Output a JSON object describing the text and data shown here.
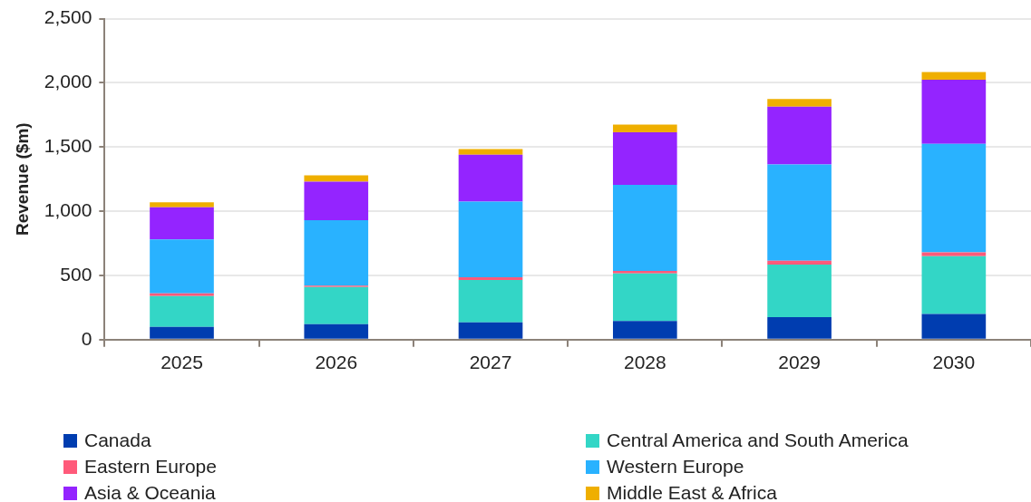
{
  "chart_data": {
    "type": "bar",
    "stacked": true,
    "ylabel": "Revenue ($m)",
    "categories": [
      "2025",
      "2026",
      "2027",
      "2028",
      "2029",
      "2030"
    ],
    "series": [
      {
        "name": "Canada",
        "color": "#003db0",
        "values": [
          100,
          120,
          135,
          145,
          175,
          200
        ]
      },
      {
        "name": "Central America and South America",
        "color": "#33d6c6",
        "values": [
          240,
          290,
          330,
          370,
          410,
          450
        ]
      },
      {
        "name": "Eastern Europe",
        "color": "#ff5a7a",
        "values": [
          20,
          10,
          20,
          20,
          30,
          30
        ]
      },
      {
        "name": "Western Europe",
        "color": "#29b2ff",
        "values": [
          420,
          510,
          590,
          670,
          750,
          845
        ]
      },
      {
        "name": "Asia & Oceania",
        "color": "#9424ff",
        "values": [
          250,
          300,
          365,
          410,
          450,
          500
        ]
      },
      {
        "name": "Middle East & Africa",
        "color": "#efaf00",
        "values": [
          40,
          50,
          45,
          60,
          60,
          60
        ]
      }
    ],
    "ylim": [
      0,
      2500
    ],
    "yticks": [
      0,
      500,
      {
        "value": 1000,
        "label": "1,000"
      },
      {
        "value": 1500,
        "label": "1,500"
      },
      {
        "value": 2000,
        "label": "2,000"
      },
      {
        "value": 2500,
        "label": "2,500"
      }
    ],
    "grid": "y",
    "legend": "bottom"
  }
}
